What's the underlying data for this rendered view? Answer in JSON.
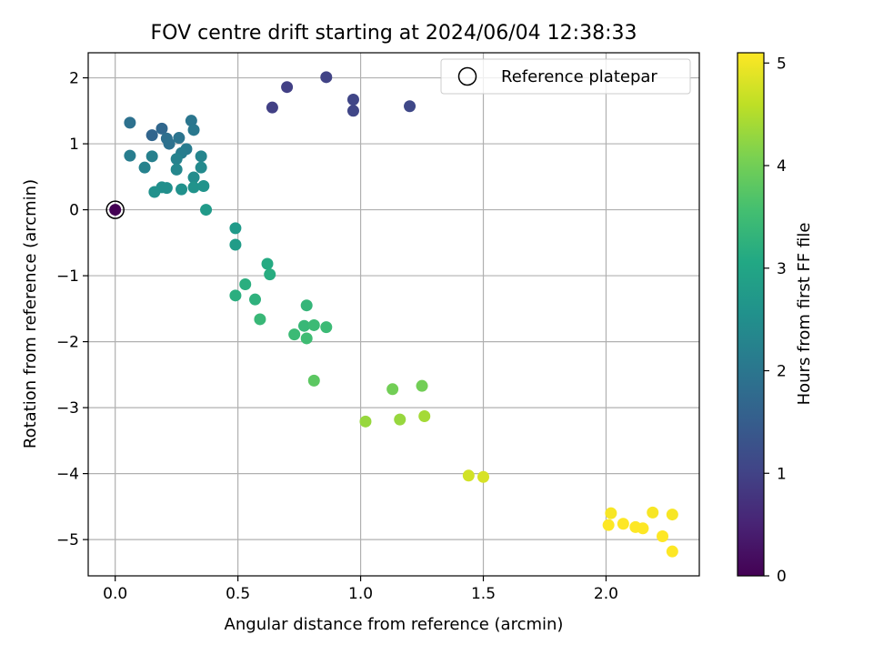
{
  "chart_data": {
    "type": "scatter",
    "title": "FOV centre drift starting at 2024/06/04 12:38:33",
    "xlabel": "Angular distance from reference (arcmin)",
    "ylabel": "Rotation from reference (arcmin)",
    "xlim": [
      -0.11,
      2.38
    ],
    "ylim": [
      -5.55,
      2.38
    ],
    "xticks": [
      0.0,
      0.5,
      1.0,
      1.5,
      2.0
    ],
    "xtick_labels": [
      "0.0",
      "0.5",
      "1.0",
      "1.5",
      "2.0"
    ],
    "yticks": [
      -5,
      -4,
      -3,
      -2,
      -1,
      0,
      1,
      2
    ],
    "ytick_labels": [
      "−5",
      "−4",
      "−3",
      "−2",
      "−1",
      "0",
      "1",
      "2"
    ],
    "grid": true,
    "colormap": "viridis",
    "color_range": [
      0,
      5.1
    ],
    "colorbar": {
      "label": "Hours from first FF file",
      "ticks": [
        0,
        1,
        2,
        3,
        4,
        5
      ],
      "tick_labels": [
        "0",
        "1",
        "2",
        "3",
        "4",
        "5"
      ]
    },
    "reference_point": {
      "x": 0.0,
      "y": 0.0,
      "hours": 0.0
    },
    "legend": {
      "label": "Reference platepar",
      "position": "top-right"
    },
    "points": [
      {
        "x": 0.64,
        "y": 1.55,
        "hours": 0.95
      },
      {
        "x": 0.7,
        "y": 1.86,
        "hours": 0.95
      },
      {
        "x": 0.86,
        "y": 2.01,
        "hours": 1.0
      },
      {
        "x": 0.97,
        "y": 1.67,
        "hours": 1.05
      },
      {
        "x": 0.97,
        "y": 1.5,
        "hours": 1.05
      },
      {
        "x": 1.2,
        "y": 1.57,
        "hours": 1.1
      },
      {
        "x": 0.15,
        "y": 1.13,
        "hours": 1.65
      },
      {
        "x": 0.19,
        "y": 1.23,
        "hours": 1.7
      },
      {
        "x": 0.06,
        "y": 1.32,
        "hours": 1.9
      },
      {
        "x": 0.21,
        "y": 1.08,
        "hours": 1.85
      },
      {
        "x": 0.22,
        "y": 1.0,
        "hours": 1.9
      },
      {
        "x": 0.26,
        "y": 1.09,
        "hours": 1.95
      },
      {
        "x": 0.31,
        "y": 1.35,
        "hours": 2.0
      },
      {
        "x": 0.32,
        "y": 1.21,
        "hours": 2.05
      },
      {
        "x": 0.29,
        "y": 0.92,
        "hours": 2.1
      },
      {
        "x": 0.27,
        "y": 0.86,
        "hours": 2.15
      },
      {
        "x": 0.06,
        "y": 0.82,
        "hours": 2.15
      },
      {
        "x": 0.15,
        "y": 0.81,
        "hours": 2.2
      },
      {
        "x": 0.25,
        "y": 0.77,
        "hours": 2.25
      },
      {
        "x": 0.35,
        "y": 0.81,
        "hours": 2.3
      },
      {
        "x": 0.12,
        "y": 0.64,
        "hours": 2.25
      },
      {
        "x": 0.25,
        "y": 0.61,
        "hours": 2.35
      },
      {
        "x": 0.35,
        "y": 0.64,
        "hours": 2.4
      },
      {
        "x": 0.32,
        "y": 0.49,
        "hours": 2.45
      },
      {
        "x": 0.19,
        "y": 0.34,
        "hours": 2.5
      },
      {
        "x": 0.21,
        "y": 0.33,
        "hours": 2.5
      },
      {
        "x": 0.16,
        "y": 0.27,
        "hours": 2.55
      },
      {
        "x": 0.27,
        "y": 0.31,
        "hours": 2.55
      },
      {
        "x": 0.32,
        "y": 0.34,
        "hours": 2.6
      },
      {
        "x": 0.36,
        "y": 0.36,
        "hours": 2.6
      },
      {
        "x": 0.37,
        "y": 0.0,
        "hours": 2.75
      },
      {
        "x": 0.49,
        "y": -0.28,
        "hours": 2.75
      },
      {
        "x": 0.49,
        "y": -0.53,
        "hours": 2.8
      },
      {
        "x": 0.62,
        "y": -0.82,
        "hours": 3.1
      },
      {
        "x": 0.63,
        "y": -0.98,
        "hours": 3.15
      },
      {
        "x": 0.53,
        "y": -1.13,
        "hours": 3.2
      },
      {
        "x": 0.49,
        "y": -1.3,
        "hours": 3.2
      },
      {
        "x": 0.57,
        "y": -1.36,
        "hours": 3.25
      },
      {
        "x": 0.59,
        "y": -1.66,
        "hours": 3.4
      },
      {
        "x": 0.78,
        "y": -1.45,
        "hours": 3.35
      },
      {
        "x": 0.77,
        "y": -1.76,
        "hours": 3.4
      },
      {
        "x": 0.81,
        "y": -1.75,
        "hours": 3.45
      },
      {
        "x": 0.86,
        "y": -1.78,
        "hours": 3.45
      },
      {
        "x": 0.73,
        "y": -1.89,
        "hours": 3.45
      },
      {
        "x": 0.78,
        "y": -1.95,
        "hours": 3.5
      },
      {
        "x": 0.81,
        "y": -2.59,
        "hours": 3.8
      },
      {
        "x": 1.13,
        "y": -2.72,
        "hours": 4.0
      },
      {
        "x": 1.25,
        "y": -2.67,
        "hours": 4.0
      },
      {
        "x": 1.02,
        "y": -3.21,
        "hours": 4.3
      },
      {
        "x": 1.16,
        "y": -3.18,
        "hours": 4.3
      },
      {
        "x": 1.26,
        "y": -3.13,
        "hours": 4.4
      },
      {
        "x": 1.44,
        "y": -4.03,
        "hours": 4.75
      },
      {
        "x": 1.5,
        "y": -4.05,
        "hours": 4.8
      },
      {
        "x": 2.02,
        "y": -4.6,
        "hours": 5.05
      },
      {
        "x": 2.19,
        "y": -4.59,
        "hours": 5.05
      },
      {
        "x": 2.27,
        "y": -4.62,
        "hours": 5.05
      },
      {
        "x": 2.01,
        "y": -4.78,
        "hours": 5.1
      },
      {
        "x": 2.07,
        "y": -4.76,
        "hours": 5.1
      },
      {
        "x": 2.12,
        "y": -4.81,
        "hours": 5.1
      },
      {
        "x": 2.15,
        "y": -4.83,
        "hours": 5.1
      },
      {
        "x": 2.23,
        "y": -4.95,
        "hours": 5.1
      },
      {
        "x": 2.27,
        "y": -5.18,
        "hours": 5.1
      }
    ]
  }
}
